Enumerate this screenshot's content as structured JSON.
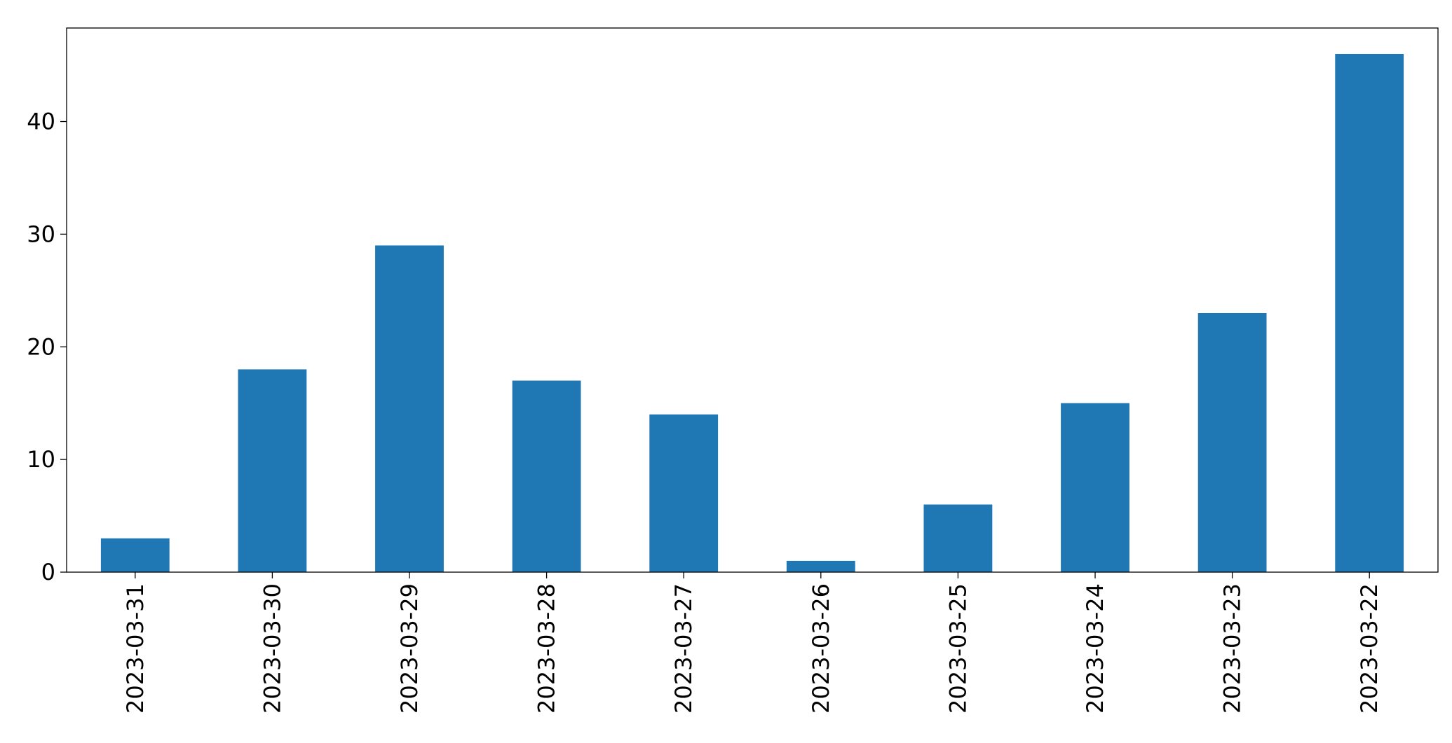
{
  "chart_data": {
    "type": "bar",
    "categories": [
      "2023-03-31",
      "2023-03-30",
      "2023-03-29",
      "2023-03-28",
      "2023-03-27",
      "2023-03-26",
      "2023-03-25",
      "2023-03-24",
      "2023-03-23",
      "2023-03-22"
    ],
    "values": [
      3,
      18,
      29,
      17,
      14,
      1,
      6,
      15,
      23,
      46
    ],
    "color": "#1f77b4",
    "ylim": [
      0,
      48.3
    ],
    "yticks": [
      0,
      10,
      20,
      30,
      40
    ],
    "grid": false
  }
}
